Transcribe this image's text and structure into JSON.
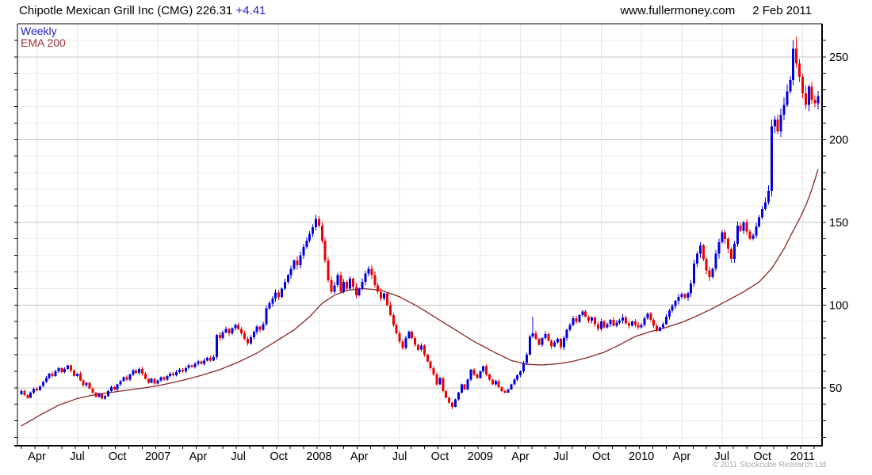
{
  "header": {
    "title": "Chipotle Mexican Grill Inc (CMG) 226.31",
    "change": "+4.41",
    "website": "www.fullermoney.com",
    "date": "2 Feb 2011"
  },
  "legend": {
    "weekly_label": "Weekly",
    "ema_label": "EMA 200"
  },
  "footer": {
    "copyright": "© 2011 Stockcube Research Ltd"
  },
  "colors": {
    "up": "#0000e0",
    "down": "#ee0000",
    "ema": "#8b2626",
    "weekly_label": "#2222cc",
    "ema_label": "#993333",
    "grid_minor": "#ececec",
    "grid_major": "#c4c4c4",
    "grid_vertical": "#e6e6e6",
    "axis": "#000000",
    "change": "#2222cc"
  },
  "chart_data": {
    "type": "candlestick",
    "title": "Chipotle Mexican Grill Inc (CMG)",
    "symbol": "CMG",
    "timeframe": "Weekly",
    "last_price": 226.31,
    "change": "+4.41",
    "as_of": "2 Feb 2011",
    "ylim": [
      15,
      270
    ],
    "y_ticks": [
      50,
      100,
      150,
      200,
      250
    ],
    "y_minor_step": 10,
    "legend_position": "top-left",
    "x_labels": [
      {
        "label": "Apr",
        "week": 5
      },
      {
        "label": "Jul",
        "week": 18
      },
      {
        "label": "Oct",
        "week": 31
      },
      {
        "label": "2007",
        "week": 44
      },
      {
        "label": "Apr",
        "week": 57
      },
      {
        "label": "Jul",
        "week": 70
      },
      {
        "label": "Oct",
        "week": 83
      },
      {
        "label": "2008",
        "week": 96
      },
      {
        "label": "Apr",
        "week": 109
      },
      {
        "label": "Jul",
        "week": 122
      },
      {
        "label": "Oct",
        "week": 135
      },
      {
        "label": "2009",
        "week": 148
      },
      {
        "label": "Apr",
        "week": 161
      },
      {
        "label": "Jul",
        "week": 174
      },
      {
        "label": "Oct",
        "week": 187
      },
      {
        "label": "2010",
        "week": 200
      },
      {
        "label": "Apr",
        "week": 213
      },
      {
        "label": "Jul",
        "week": 226
      },
      {
        "label": "Oct",
        "week": 239
      },
      {
        "label": "2011",
        "week": 252
      }
    ],
    "first_open": 46,
    "closes": [
      48,
      45.5,
      44,
      47,
      49.5,
      48.5,
      51,
      53.5,
      56,
      58.5,
      57,
      60,
      62,
      59.5,
      61.5,
      63.5,
      60.5,
      57,
      58.5,
      54.5,
      51.5,
      53,
      49.5,
      47,
      44.5,
      46.5,
      43.5,
      45,
      48,
      50.5,
      49,
      52,
      54,
      56.5,
      55,
      58,
      60.5,
      59,
      61.5,
      58.5,
      55.5,
      53,
      55.5,
      52.5,
      54.5,
      56.5,
      55,
      57,
      58.5,
      57.5,
      59.5,
      61,
      60,
      62,
      63.5,
      62.5,
      64.5,
      66,
      64.5,
      66.5,
      68,
      66.5,
      68.5,
      82,
      80,
      83.5,
      85.5,
      83,
      86,
      88,
      85.5,
      83,
      79.5,
      77,
      80.5,
      84,
      87,
      85,
      88.5,
      98,
      101,
      104,
      107.5,
      105,
      110,
      114,
      118,
      122,
      127,
      124,
      130,
      135,
      139,
      143,
      147,
      152,
      148,
      139,
      127,
      115,
      108,
      112,
      118,
      108,
      114,
      110,
      116,
      111,
      106,
      110,
      114,
      119,
      122,
      118,
      112,
      108,
      104,
      107,
      100,
      94,
      88,
      83,
      78,
      74,
      80,
      84,
      80,
      76,
      73,
      75.5,
      70,
      66,
      62,
      58,
      52,
      56,
      48,
      44,
      41,
      38.5,
      43,
      47,
      52,
      49,
      55,
      61,
      58,
      56,
      60,
      63,
      58,
      55,
      52,
      54,
      50.5,
      48,
      47,
      49,
      52,
      55,
      57.5,
      60,
      65,
      70,
      81,
      83,
      79.5,
      76,
      80,
      82.5,
      78.5,
      75,
      77.5,
      79.5,
      74.5,
      80,
      85,
      88,
      92,
      90,
      94,
      96,
      93,
      90.5,
      92.5,
      88.5,
      85.5,
      90,
      86.5,
      88.5,
      91,
      87.5,
      89.5,
      90.5,
      92.5,
      89,
      87.5,
      90,
      88,
      86.5,
      88,
      92,
      95,
      91,
      87.5,
      84.5,
      86.5,
      88.5,
      93,
      96.5,
      99.5,
      102.5,
      105,
      106.5,
      104.5,
      107,
      113,
      125,
      131,
      136,
      128,
      121,
      117,
      122,
      131,
      138,
      144,
      140,
      134,
      128,
      137,
      148,
      145,
      150,
      144.5,
      140,
      142,
      147.5,
      153,
      158,
      162,
      169,
      208,
      212,
      205,
      215,
      221,
      229,
      236,
      255,
      246,
      238,
      228,
      221,
      232,
      224,
      222,
      226.31
    ],
    "wick_overrides": {
      "139": {
        "low": 37
      },
      "165": {
        "high": 93
      },
      "249": {
        "high": 260
      },
      "250": {
        "high": 262
      }
    },
    "ema200": {
      "label": "EMA 200",
      "anchors": [
        [
          0,
          27
        ],
        [
          6,
          33.5
        ],
        [
          12,
          39.5
        ],
        [
          18,
          43.5
        ],
        [
          24,
          46
        ],
        [
          32,
          48
        ],
        [
          40,
          50
        ],
        [
          46,
          52
        ],
        [
          52,
          54.5
        ],
        [
          58,
          57.5
        ],
        [
          64,
          61
        ],
        [
          70,
          65.5
        ],
        [
          76,
          71
        ],
        [
          82,
          78
        ],
        [
          88,
          85
        ],
        [
          93,
          93
        ],
        [
          97,
          101
        ],
        [
          101,
          106
        ],
        [
          105,
          108.8
        ],
        [
          110,
          110
        ],
        [
          116,
          109
        ],
        [
          122,
          105
        ],
        [
          128,
          99
        ],
        [
          134,
          92
        ],
        [
          140,
          85
        ],
        [
          146,
          78
        ],
        [
          152,
          72
        ],
        [
          158,
          66.5
        ],
        [
          163,
          64.2
        ],
        [
          168,
          63.8
        ],
        [
          173,
          64.5
        ],
        [
          178,
          66
        ],
        [
          183,
          68.5
        ],
        [
          188,
          71.5
        ],
        [
          193,
          76
        ],
        [
          198,
          81
        ],
        [
          203,
          84
        ],
        [
          208,
          86.5
        ],
        [
          213,
          89.5
        ],
        [
          218,
          93.5
        ],
        [
          223,
          98
        ],
        [
          228,
          103
        ],
        [
          233,
          108
        ],
        [
          238,
          114
        ],
        [
          242,
          122
        ],
        [
          246,
          134
        ],
        [
          249,
          145
        ],
        [
          251,
          152
        ],
        [
          253,
          160
        ],
        [
          255,
          170
        ],
        [
          257,
          182
        ]
      ]
    }
  }
}
